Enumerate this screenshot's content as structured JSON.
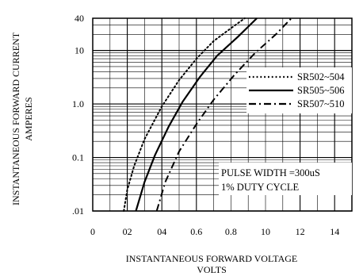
{
  "chart_data": {
    "type": "line",
    "ylabel_line1": "INSTANTANEOUS FORWARD CURRENT",
    "ylabel_line2": "AMPERES",
    "xlabel_line1": "INSTANTANEOUS FORWARD VOLTAGE",
    "xlabel_line2": "VOLTS",
    "xlim": [
      0,
      1.5
    ],
    "ylim": [
      0.01,
      40
    ],
    "y_scale": "log",
    "grid": true,
    "x_ticks": [
      {
        "value": 0,
        "label": "0"
      },
      {
        "value": 0.2,
        "label": "02"
      },
      {
        "value": 0.4,
        "label": "04"
      },
      {
        "value": 0.6,
        "label": "0.6"
      },
      {
        "value": 0.8,
        "label": "0.8"
      },
      {
        "value": 1.0,
        "label": "10"
      },
      {
        "value": 1.2,
        "label": "12"
      },
      {
        "value": 1.4,
        "label": "14"
      }
    ],
    "y_ticks": [
      {
        "value": 40,
        "label": "40"
      },
      {
        "value": 10,
        "label": "10"
      },
      {
        "value": 1,
        "label": "1.0"
      },
      {
        "value": 0.1,
        "label": "0.1"
      },
      {
        "value": 0.01,
        "label": ".01"
      }
    ],
    "legend_position": "right",
    "series": [
      {
        "name": "SR502~504",
        "style": "dotted",
        "x": [
          0.18,
          0.2,
          0.24,
          0.3,
          0.4,
          0.5,
          0.6,
          0.7,
          0.8,
          0.88
        ],
        "y": [
          0.01,
          0.025,
          0.07,
          0.22,
          0.9,
          2.8,
          7.0,
          15,
          26,
          40
        ]
      },
      {
        "name": "SR505~506",
        "style": "solid",
        "x": [
          0.25,
          0.3,
          0.36,
          0.44,
          0.52,
          0.62,
          0.72,
          0.84,
          0.95
        ],
        "y": [
          0.01,
          0.035,
          0.11,
          0.38,
          1.1,
          3.2,
          8.0,
          18,
          40
        ]
      },
      {
        "name": "SR507~510",
        "style": "dashdot",
        "x": [
          0.37,
          0.42,
          0.5,
          0.6,
          0.7,
          0.82,
          0.94,
          1.06,
          1.15
        ],
        "y": [
          0.01,
          0.035,
          0.13,
          0.42,
          1.2,
          3.5,
          9.0,
          20,
          40
        ]
      }
    ],
    "annotations": [
      "PULSE WIDTH =300uS",
      "1% DUTY CYCLE"
    ]
  }
}
